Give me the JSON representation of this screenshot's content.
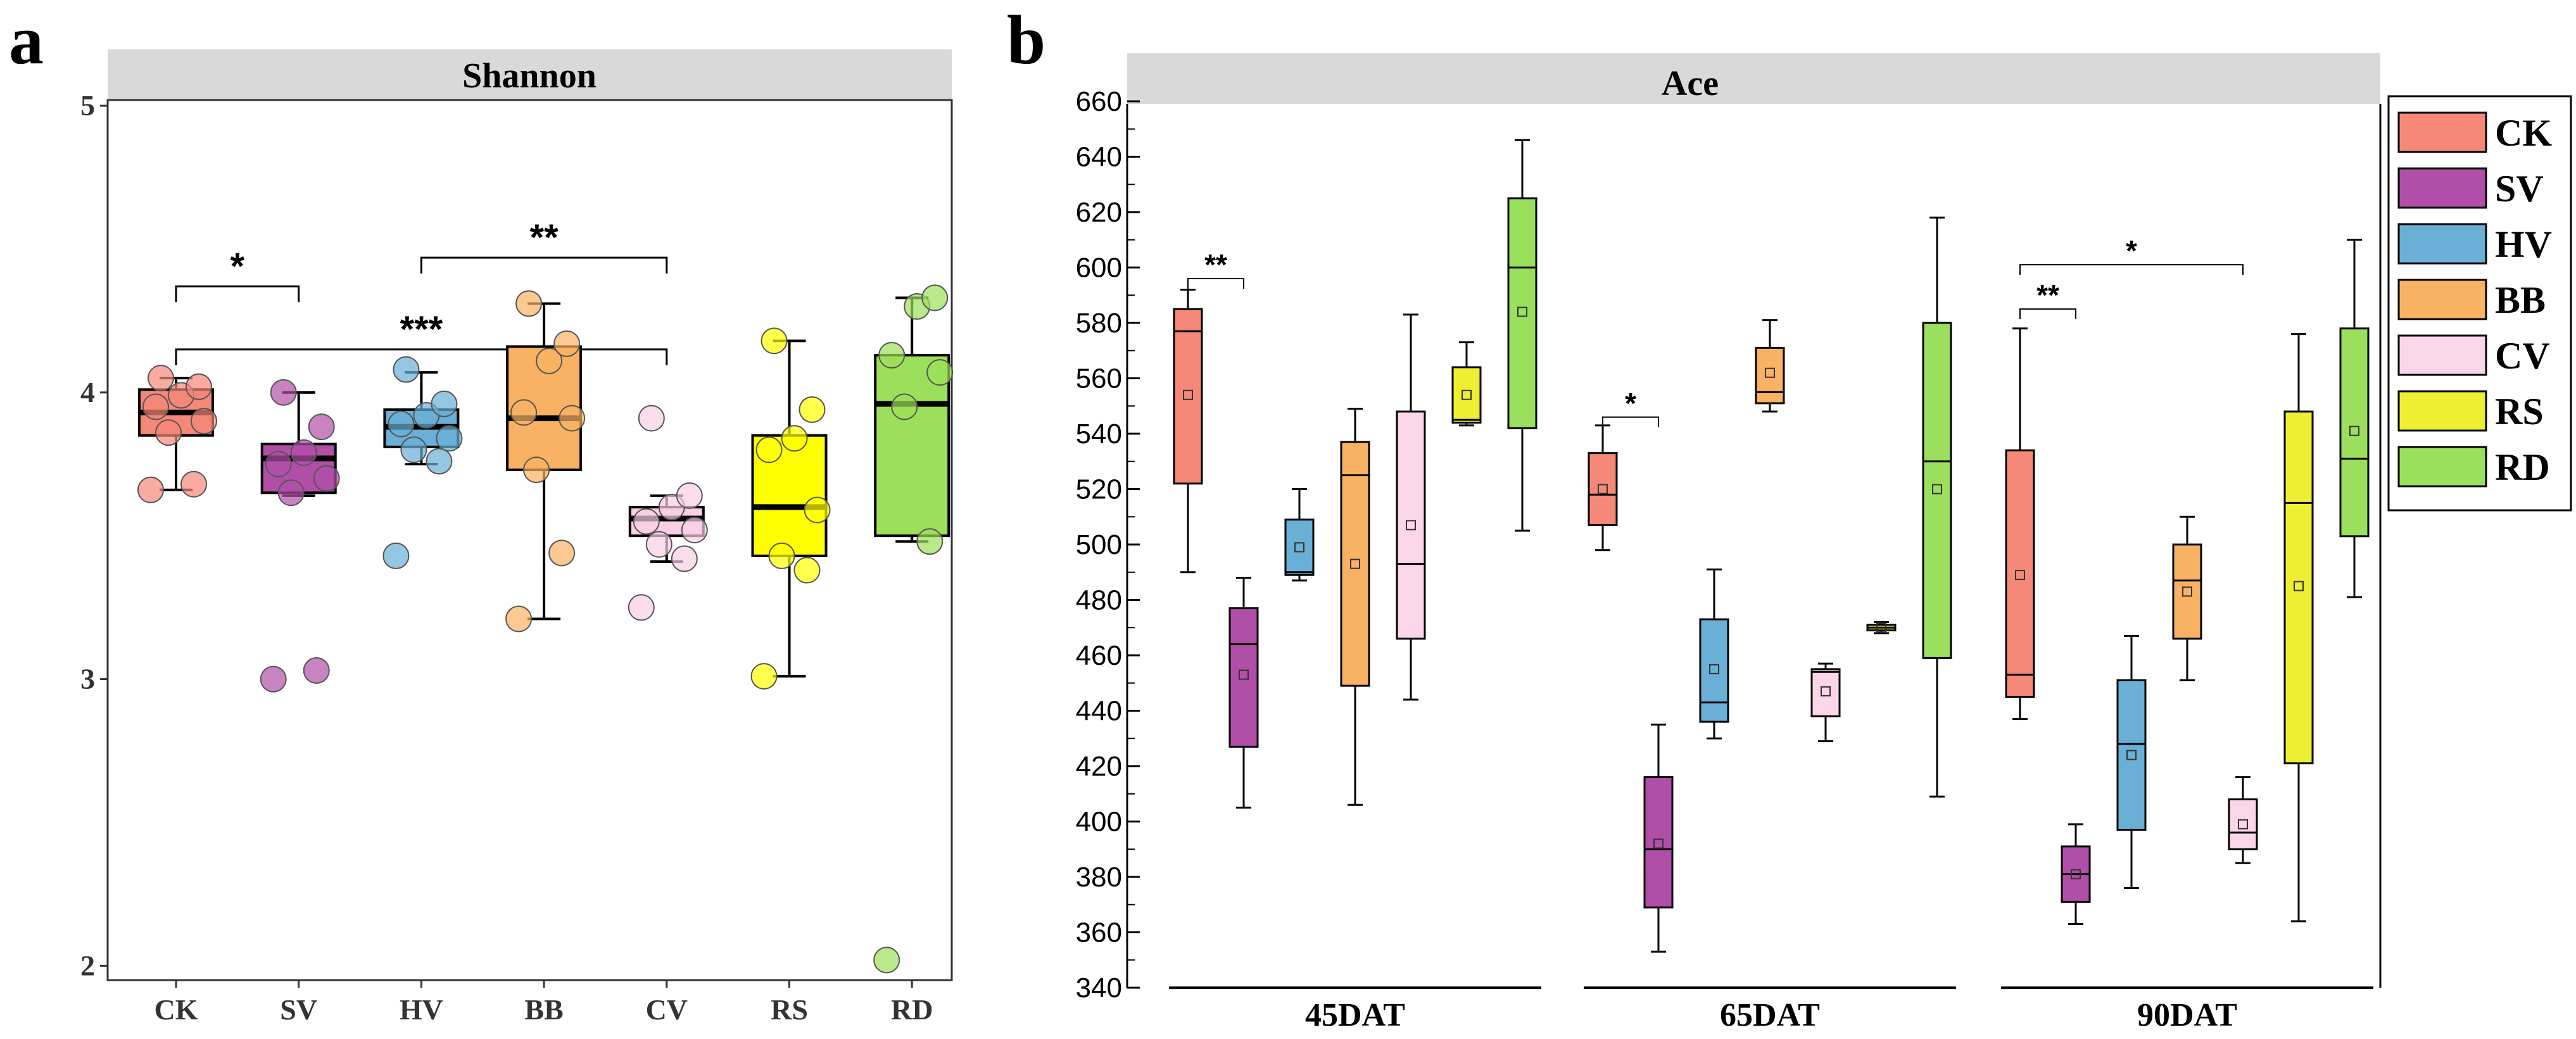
{
  "figure": {
    "panel_a_letter": "a",
    "panel_b_letter": "b"
  },
  "colors": {
    "CK": "#f58878",
    "SV": "#b14ea7",
    "HV": "#6aafd6",
    "BB": "#f9b263",
    "CV": "#f8cfe5",
    "RS": "#ffff00",
    "RD": "#9cdf5a",
    "CV_b": "#fbd6ea",
    "RS_b": "#eeee33",
    "RD_b": "#9be05c",
    "strip": "#d9d9d9"
  },
  "chart_data": [
    {
      "type": "box",
      "title": "Shannon",
      "categories": [
        "CK",
        "SV",
        "HV",
        "BB",
        "CV",
        "RS",
        "RD"
      ],
      "ylim": [
        1.95,
        5.02
      ],
      "yticks": [
        2,
        3,
        4,
        5
      ],
      "boxes": [
        {
          "name": "CK",
          "q1": 3.85,
          "median": 3.93,
          "q3": 4.01,
          "whisker_low": 3.66,
          "whisker_high": 4.05,
          "points": [
            3.66,
            3.68,
            3.86,
            3.9,
            3.95,
            3.99,
            4.02,
            4.05
          ]
        },
        {
          "name": "SV",
          "q1": 3.65,
          "median": 3.77,
          "q3": 3.82,
          "whisker_low": 3.64,
          "whisker_high": 4.0,
          "points": [
            3.0,
            3.03,
            3.65,
            3.7,
            3.75,
            3.79,
            3.88,
            4.0
          ]
        },
        {
          "name": "HV",
          "q1": 3.81,
          "median": 3.88,
          "q3": 3.94,
          "whisker_low": 3.75,
          "whisker_high": 4.07,
          "points": [
            3.43,
            3.76,
            3.8,
            3.84,
            3.89,
            3.92,
            3.96,
            4.08
          ]
        },
        {
          "name": "BB",
          "q1": 3.73,
          "median": 3.91,
          "q3": 4.16,
          "whisker_low": 3.21,
          "whisker_high": 4.31,
          "points": [
            3.21,
            3.44,
            3.73,
            3.91,
            3.93,
            4.11,
            4.17,
            4.31
          ]
        },
        {
          "name": "CV",
          "q1": 3.5,
          "median": 3.56,
          "q3": 3.6,
          "whisker_low": 3.41,
          "whisker_high": 3.64,
          "points": [
            3.25,
            3.42,
            3.47,
            3.52,
            3.55,
            3.6,
            3.64,
            3.91
          ]
        },
        {
          "name": "RS",
          "q1": 3.43,
          "median": 3.6,
          "q3": 3.85,
          "whisker_low": 3.01,
          "whisker_high": 4.18,
          "points": [
            3.01,
            3.38,
            3.43,
            3.59,
            3.8,
            3.84,
            3.94,
            4.18
          ]
        },
        {
          "name": "RD",
          "q1": 3.5,
          "median": 3.96,
          "q3": 4.13,
          "whisker_low": 3.48,
          "whisker_high": 4.33,
          "points": [
            2.02,
            3.48,
            3.95,
            4.07,
            4.13,
            4.3,
            4.33
          ]
        }
      ],
      "significance": [
        {
          "from": "HV",
          "to": "CV",
          "y": 4.47,
          "label": "**"
        },
        {
          "from": "CK",
          "to": "CV",
          "y": 4.15,
          "label": "***"
        },
        {
          "from": "CK",
          "to": "SV",
          "y": 4.37,
          "label": "*"
        }
      ]
    },
    {
      "type": "box",
      "title": "Ace",
      "groups": [
        "45DAT",
        "65DAT",
        "90DAT"
      ],
      "series_names": [
        "CK",
        "SV",
        "HV",
        "BB",
        "CV",
        "RS",
        "RD"
      ],
      "ylim": [
        340,
        660
      ],
      "yticks": [
        340,
        360,
        380,
        400,
        420,
        440,
        460,
        480,
        500,
        520,
        540,
        560,
        580,
        600,
        620,
        640,
        660
      ],
      "boxes": [
        {
          "group": "45DAT",
          "name": "CK",
          "whisker_low": 490,
          "q1": 522,
          "median": 577,
          "q3": 585,
          "whisker_high": 592,
          "mean": 554
        },
        {
          "group": "45DAT",
          "name": "SV",
          "whisker_low": 405,
          "q1": 427,
          "median": 464,
          "q3": 477,
          "whisker_high": 488,
          "mean": 453
        },
        {
          "group": "45DAT",
          "name": "HV",
          "whisker_low": 487,
          "q1": 489,
          "median": 490,
          "q3": 509,
          "whisker_high": 520,
          "mean": 499
        },
        {
          "group": "45DAT",
          "name": "BB",
          "whisker_low": 406,
          "q1": 449,
          "median": 525,
          "q3": 537,
          "whisker_high": 549,
          "mean": 493
        },
        {
          "group": "45DAT",
          "name": "CV",
          "whisker_low": 444,
          "q1": 466,
          "median": 493,
          "q3": 548,
          "whisker_high": 583,
          "mean": 507
        },
        {
          "group": "45DAT",
          "name": "RS",
          "whisker_low": 543,
          "q1": 544,
          "median": 545,
          "q3": 564,
          "whisker_high": 573,
          "mean": 554
        },
        {
          "group": "45DAT",
          "name": "RD",
          "whisker_low": 505,
          "q1": 542,
          "median": 600,
          "q3": 625,
          "whisker_high": 646,
          "mean": 584
        },
        {
          "group": "65DAT",
          "name": "CK",
          "whisker_low": 498,
          "q1": 507,
          "median": 518,
          "q3": 533,
          "whisker_high": 543,
          "mean": 520
        },
        {
          "group": "65DAT",
          "name": "SV",
          "whisker_low": 353,
          "q1": 369,
          "median": 390,
          "q3": 416,
          "whisker_high": 435,
          "mean": 392
        },
        {
          "group": "65DAT",
          "name": "HV",
          "whisker_low": 430,
          "q1": 436,
          "median": 443,
          "q3": 473,
          "whisker_high": 491,
          "mean": 455
        },
        {
          "group": "65DAT",
          "name": "BB",
          "whisker_low": 548,
          "q1": 551,
          "median": 555,
          "q3": 571,
          "whisker_high": 581,
          "mean": 562
        },
        {
          "group": "65DAT",
          "name": "CV",
          "whisker_low": 429,
          "q1": 438,
          "median": 454,
          "q3": 455,
          "whisker_high": 457,
          "mean": 447
        },
        {
          "group": "65DAT",
          "name": "RS",
          "whisker_low": 468,
          "q1": 469,
          "median": 470,
          "q3": 471,
          "whisker_high": 472,
          "mean": 470
        },
        {
          "group": "65DAT",
          "name": "RD",
          "whisker_low": 409,
          "q1": 459,
          "median": 530,
          "q3": 580,
          "whisker_high": 618,
          "mean": 520
        },
        {
          "group": "90DAT",
          "name": "CK",
          "whisker_low": 437,
          "q1": 445,
          "median": 453,
          "q3": 534,
          "whisker_high": 578,
          "mean": 489
        },
        {
          "group": "90DAT",
          "name": "SV",
          "whisker_low": 363,
          "q1": 371,
          "median": 381,
          "q3": 391,
          "whisker_high": 399,
          "mean": 381
        },
        {
          "group": "90DAT",
          "name": "HV",
          "whisker_low": 376,
          "q1": 397,
          "median": 428,
          "q3": 451,
          "whisker_high": 467,
          "mean": 424
        },
        {
          "group": "90DAT",
          "name": "BB",
          "whisker_low": 451,
          "q1": 466,
          "median": 487,
          "q3": 500,
          "whisker_high": 510,
          "mean": 483
        },
        {
          "group": "90DAT",
          "name": "CV",
          "whisker_low": 385,
          "q1": 390,
          "median": 396,
          "q3": 408,
          "whisker_high": 416,
          "mean": 399
        },
        {
          "group": "90DAT",
          "name": "RS",
          "whisker_low": 364,
          "q1": 421,
          "median": 515,
          "q3": 548,
          "whisker_high": 576,
          "mean": 485
        },
        {
          "group": "90DAT",
          "name": "RD",
          "whisker_low": 481,
          "q1": 503,
          "median": 531,
          "q3": 578,
          "whisker_high": 610,
          "mean": 541
        }
      ],
      "significance": [
        {
          "group": "45DAT",
          "from": "CK",
          "to": "SV",
          "y": 596,
          "label": "**"
        },
        {
          "group": "65DAT",
          "from": "CK",
          "to": "SV",
          "y": 546,
          "label": "*"
        },
        {
          "group": "90DAT",
          "from": "CK",
          "to": "SV",
          "y": 585,
          "label": "**"
        },
        {
          "group": "90DAT",
          "from": "CK",
          "to": "CV",
          "y": 601,
          "label": "*"
        }
      ]
    }
  ]
}
